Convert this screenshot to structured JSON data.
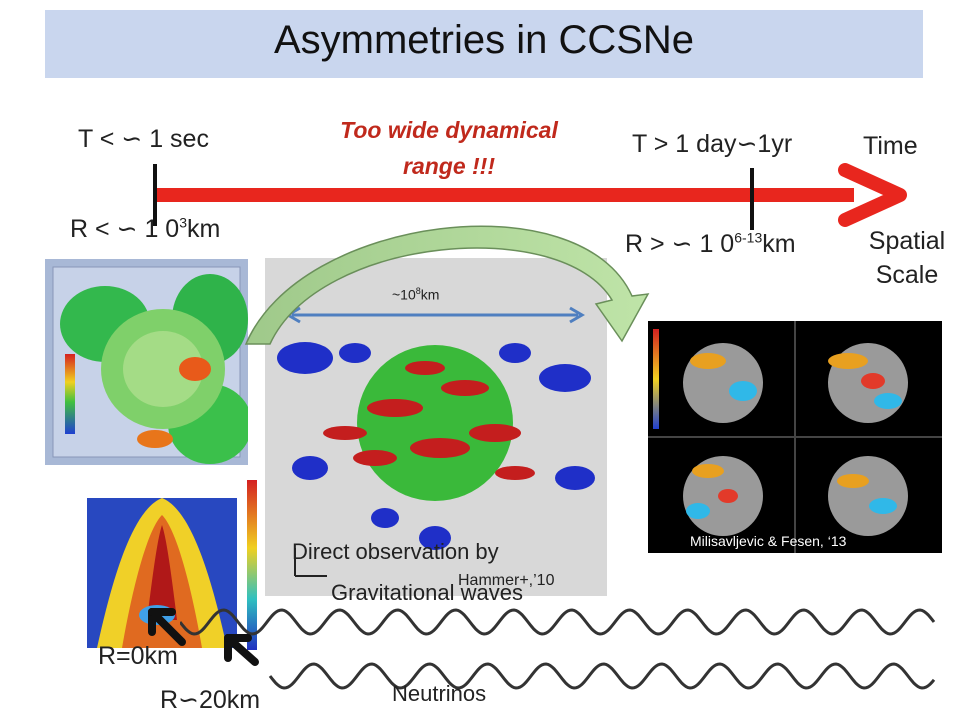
{
  "title": "Asymmetries in CCSNe",
  "timeline": {
    "t_early": "T < ∽ 1 sec",
    "r_early_prefix": "R < ∽ 1 0",
    "r_early_exp": "3",
    "r_early_unit": "km",
    "t_late": "T > 1 day∽1yr",
    "r_late_prefix": "R > ∽ 1 0",
    "r_late_exp": "6-13",
    "r_late_unit": "km",
    "time_label": "Time",
    "spatial_label_1": "Spatial",
    "spatial_label_2": "Scale",
    "range_note_1": "Too wide dynamical",
    "range_note_2": "range !!!"
  },
  "center_figure": {
    "scale_prefix": "~10",
    "scale_exp": "8",
    "scale_unit": "km",
    "credit": "Hammer+,’10"
  },
  "right_figure": {
    "credit": "Milisavljevic & Fesen, ‘13"
  },
  "captions": {
    "gw_1": "Direct observation by",
    "gw_2": "Gravitational waves",
    "r0": "R=0km",
    "r20": "R∽20km",
    "neutrinos": "Neutrinos"
  },
  "colors": {
    "arrow_red": "#e8261e",
    "note_red": "#c0291c",
    "title_bg": "#c9d6ee",
    "scale_blue": "#4f7fc0"
  },
  "icons": [
    "sim-cube-image",
    "entropy-slice-image",
    "supernova-3d-image",
    "remnant-panels-image"
  ]
}
